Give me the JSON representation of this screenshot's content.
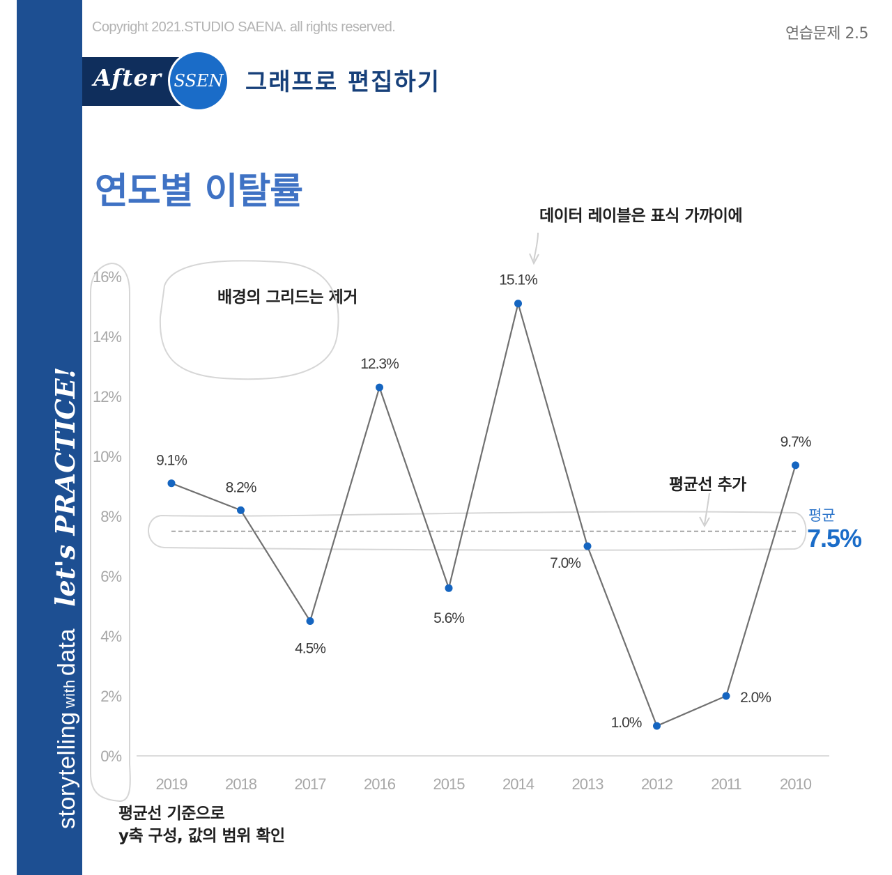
{
  "header": {
    "copyright": "Copyright 2021.STUDIO SAENA. all rights reserved.",
    "exercise": "연습문제 2.5",
    "after_label": "After",
    "badge_label": "SSEN",
    "section_title": "그래프로 편집하기"
  },
  "sidebar": {
    "text_main": "storytelling",
    "text_small": "with",
    "text_end": "data",
    "practice": "let's PRACTICE!"
  },
  "annotations": {
    "data_labels_note": "데이터 레이블은 표식 가까이에",
    "grid_note": "배경의 그리드는 제거",
    "avg_note": "평균선 추가",
    "axis_note_line1": "평균선 기준으로",
    "axis_note_line2": "y축 구성, 값의 범위 확인"
  },
  "colors": {
    "sidebar": "#1d4f92",
    "title": "#3f72c4",
    "marker": "#1565c0",
    "line": "#707070",
    "average": "#1a6cc8"
  },
  "chart_data": {
    "type": "line",
    "title": "연도별 이탈률",
    "categories": [
      "2019",
      "2018",
      "2017",
      "2016",
      "2015",
      "2014",
      "2013",
      "2012",
      "2011",
      "2010"
    ],
    "values": [
      9.1,
      8.2,
      4.5,
      12.3,
      5.6,
      15.1,
      7.0,
      1.0,
      2.0,
      9.7
    ],
    "value_labels": [
      "9.1%",
      "8.2%",
      "4.5%",
      "12.3%",
      "5.6%",
      "15.1%",
      "7.0%",
      "1.0%",
      "2.0%",
      "9.7%"
    ],
    "y_ticks": [
      "0%",
      "2%",
      "4%",
      "6%",
      "8%",
      "10%",
      "12%",
      "14%",
      "16%"
    ],
    "ylim": [
      0,
      16
    ],
    "grid": false,
    "average": {
      "label": "평균",
      "value": 7.5,
      "display": "7.5%"
    }
  }
}
